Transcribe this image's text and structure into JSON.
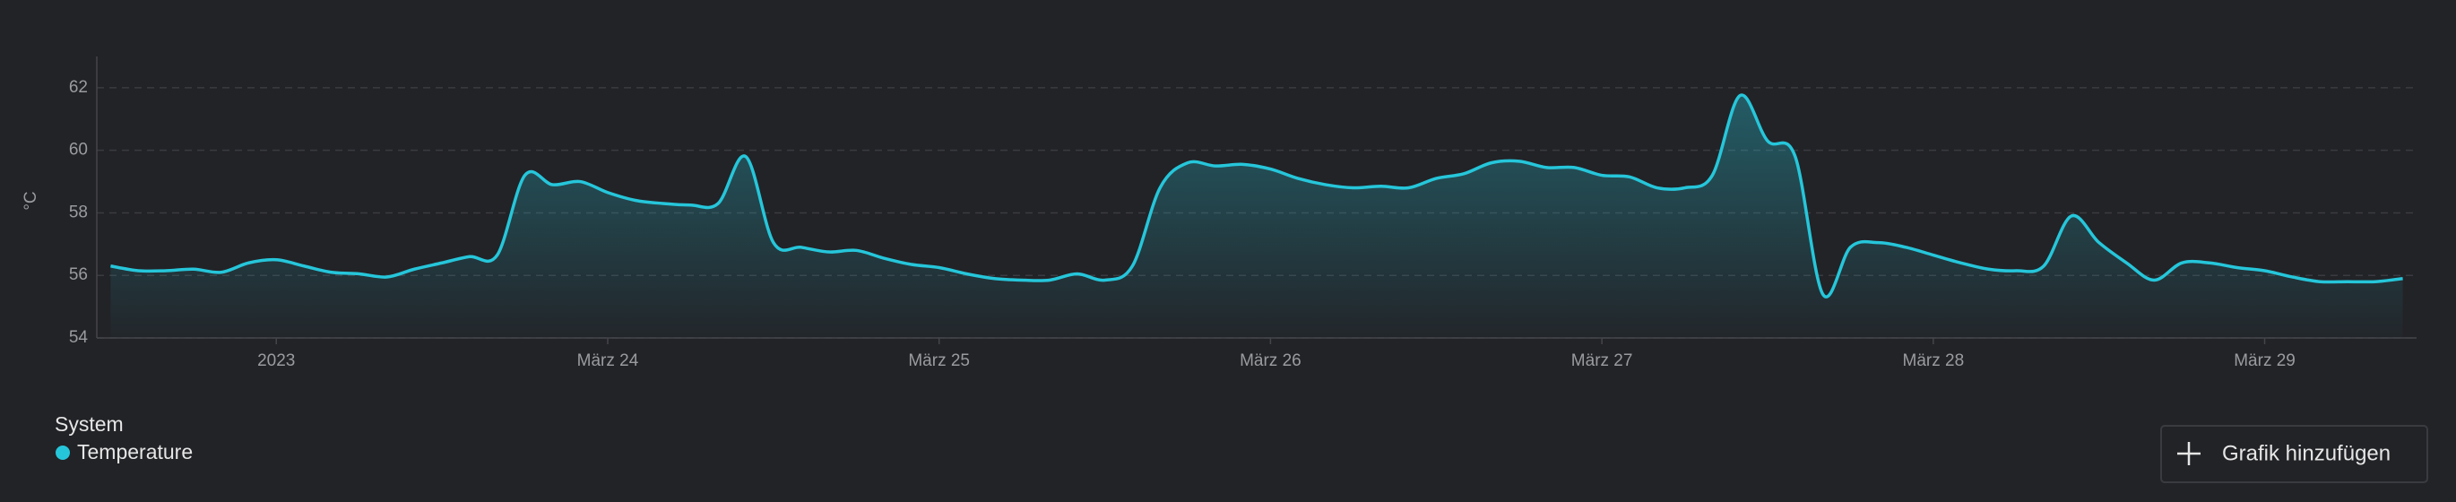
{
  "chart_data": {
    "type": "line",
    "ylabel": "°C",
    "categories": [
      null,
      null,
      null,
      null,
      null,
      null,
      "2023",
      null,
      null,
      null,
      null,
      null,
      null,
      null,
      null,
      null,
      null,
      null,
      "März 24",
      null,
      null,
      null,
      null,
      null,
      null,
      null,
      null,
      null,
      null,
      null,
      "März 25",
      null,
      null,
      null,
      null,
      null,
      null,
      null,
      null,
      null,
      null,
      null,
      "März 26",
      null,
      null,
      null,
      null,
      null,
      null,
      null,
      null,
      null,
      null,
      null,
      "März 27",
      null,
      null,
      null,
      null,
      null,
      null,
      null,
      null,
      null,
      null,
      null,
      "März 28",
      null,
      null,
      null,
      null,
      null,
      null,
      null,
      null,
      null,
      null,
      null,
      "März 29",
      null,
      null,
      null,
      null,
      null
    ],
    "series": [
      {
        "name": "Temperature",
        "color": "#26c6da",
        "values": [
          56.3,
          56.15,
          56.15,
          56.2,
          56.1,
          56.4,
          56.5,
          56.3,
          56.1,
          56.05,
          55.95,
          56.2,
          56.4,
          56.6,
          56.65,
          59.2,
          58.9,
          59.0,
          58.65,
          58.4,
          58.3,
          58.25,
          58.3,
          59.8,
          57.05,
          56.9,
          56.75,
          56.8,
          56.55,
          56.35,
          56.25,
          56.05,
          55.9,
          55.85,
          55.85,
          56.05,
          55.85,
          56.3,
          58.8,
          59.6,
          59.5,
          59.55,
          59.4,
          59.1,
          58.9,
          58.8,
          58.85,
          58.8,
          59.1,
          59.25,
          59.6,
          59.65,
          59.45,
          59.45,
          59.2,
          59.15,
          58.8,
          58.8,
          59.2,
          61.75,
          60.3,
          59.8,
          55.4,
          56.9,
          57.05,
          56.9,
          56.65,
          56.4,
          56.2,
          56.15,
          56.3,
          57.9,
          57.05,
          56.4,
          55.85,
          56.4,
          56.4,
          56.25,
          56.15,
          55.95,
          55.8,
          55.8,
          55.8,
          55.9
        ]
      }
    ],
    "ylim": [
      54,
      63
    ],
    "yticks": [
      54,
      56,
      58,
      60,
      62
    ],
    "grid": true,
    "legend_title": "System"
  },
  "button": {
    "label": "Grafik hinzufügen"
  }
}
